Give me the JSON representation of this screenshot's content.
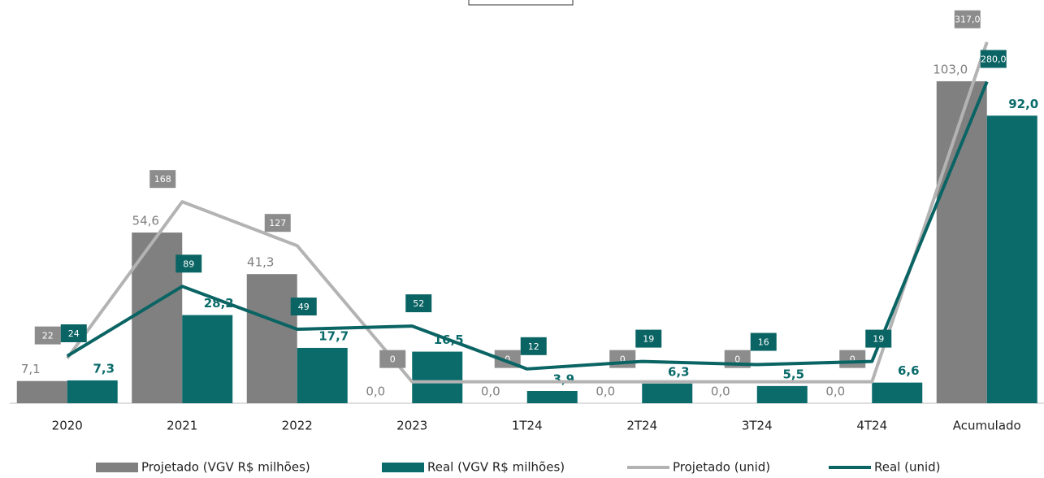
{
  "chart_data": {
    "type": "combo",
    "categories": [
      "2020",
      "2021",
      "2022",
      "2023",
      "1T24",
      "2T24",
      "3T24",
      "4T24",
      "Acumulado"
    ],
    "ylim": [
      0,
      120
    ],
    "y2lim": [
      -20,
      330
    ],
    "legend": "bottom",
    "series": [
      {
        "name": "Projetado (VGV R$ milhões)",
        "type": "bar",
        "color": "#808080",
        "values": [
          7.1,
          54.6,
          41.3,
          0.0,
          0.0,
          0.0,
          0.0,
          0.0,
          103.0
        ],
        "value_labels": [
          "7,1",
          "54,6",
          "41,3",
          "0,0",
          "0,0",
          "0,0",
          "0,0",
          "0,0",
          "103,0"
        ]
      },
      {
        "name": "Real (VGV R$ milhões)",
        "type": "bar",
        "color": "#0b6b6b",
        "values": [
          7.3,
          28.2,
          17.7,
          16.5,
          3.9,
          6.3,
          5.5,
          6.6,
          92.0
        ],
        "value_labels": [
          "7,3",
          "28,2",
          "17,7",
          "16,5",
          "3,9",
          "6,3",
          "5,5",
          "6,6",
          "92,0"
        ]
      },
      {
        "name": "Projetado (unid)",
        "type": "line",
        "axis": "y2",
        "color": "#b3b3b3",
        "values": [
          22,
          168,
          127,
          0,
          0,
          0,
          0,
          0,
          317
        ],
        "value_labels": [
          "22",
          "168",
          "127",
          "0",
          "0",
          "0",
          "0",
          "0",
          "317,0"
        ]
      },
      {
        "name": "Real (unid)",
        "type": "line",
        "axis": "y2",
        "color": "#0b6464",
        "values": [
          24,
          89,
          49,
          52,
          12,
          19,
          16,
          19,
          280
        ],
        "value_labels": [
          "24",
          "89",
          "49",
          "52",
          "12",
          "19",
          "16",
          "19",
          "280,0"
        ]
      }
    ]
  }
}
